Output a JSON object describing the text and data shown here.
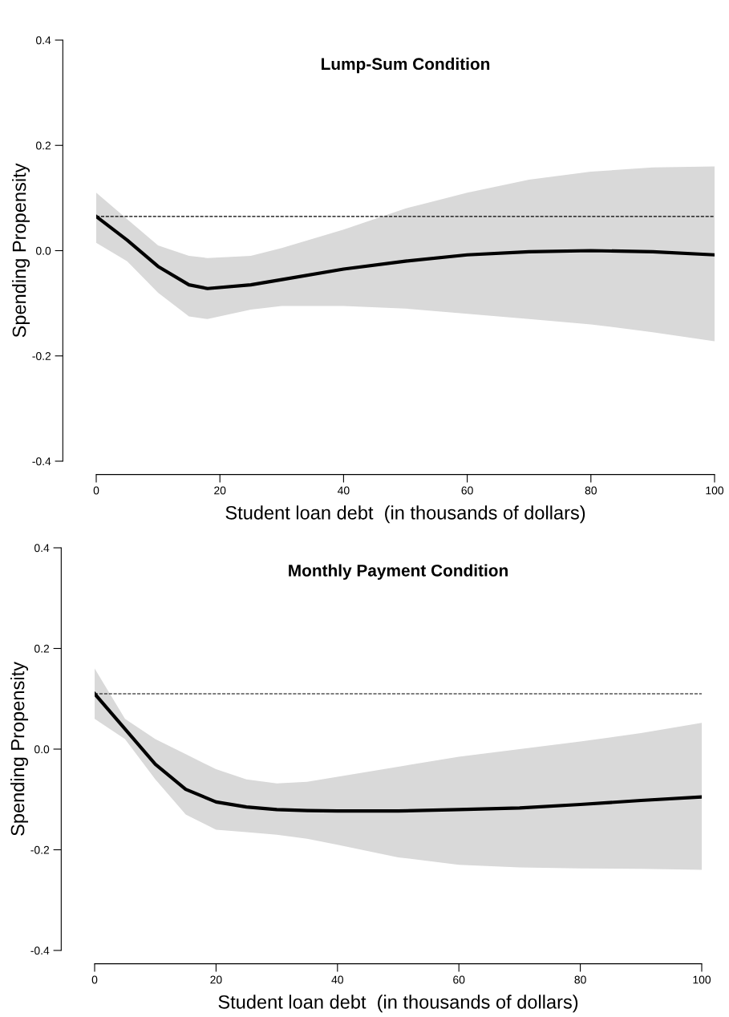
{
  "chart_data": [
    {
      "type": "line",
      "title": "Lump-Sum Condition",
      "xlabel": "Student loan debt  (in thousands of dollars)",
      "ylabel": "Spending Propensity",
      "xlim": [
        0,
        100
      ],
      "ylim": [
        -0.4,
        0.4
      ],
      "xticks": [
        0,
        20,
        40,
        60,
        80,
        100
      ],
      "yticks": [
        -0.4,
        -0.2,
        {
          "value": 0,
          "label": "0.0"
        },
        0.2,
        0.4
      ],
      "grid": false,
      "legend": false,
      "ref_lines": [
        {
          "axis": "y",
          "value": 0.065,
          "line_style": "dashed",
          "color": "#000000"
        }
      ],
      "series": [
        {
          "color": "#000000",
          "x": [
            0,
            5,
            10,
            15,
            18,
            25,
            30,
            40,
            50,
            60,
            70,
            80,
            90,
            100
          ],
          "values": [
            0.065,
            0.02,
            -0.03,
            -0.065,
            -0.072,
            -0.065,
            -0.055,
            -0.035,
            -0.02,
            -0.008,
            -0.002,
            0.0,
            -0.002,
            -0.008
          ],
          "lower": [
            0.015,
            -0.02,
            -0.08,
            -0.125,
            -0.13,
            -0.112,
            -0.105,
            -0.105,
            -0.11,
            -0.12,
            -0.13,
            -0.14,
            -0.155,
            -0.172
          ],
          "upper": [
            0.11,
            0.06,
            0.01,
            -0.01,
            -0.014,
            -0.01,
            0.005,
            0.04,
            0.08,
            0.11,
            0.135,
            0.15,
            0.158,
            0.16
          ]
        }
      ]
    },
    {
      "type": "line",
      "title": "Monthly Payment Condition",
      "xlabel": "Student loan debt  (in thousands of dollars)",
      "ylabel": "Spending Propensity",
      "xlim": [
        0,
        100
      ],
      "ylim": [
        -0.4,
        0.4
      ],
      "xticks": [
        0,
        20,
        40,
        60,
        80,
        100
      ],
      "yticks": [
        -0.4,
        -0.2,
        {
          "value": 0,
          "label": "0.0"
        },
        0.2,
        0.4
      ],
      "grid": false,
      "legend": false,
      "ref_lines": [
        {
          "axis": "y",
          "value": 0.11,
          "line_style": "dashed",
          "color": "#000000"
        }
      ],
      "series": [
        {
          "color": "#000000",
          "x": [
            0,
            5,
            10,
            15,
            20,
            25,
            30,
            35,
            40,
            50,
            60,
            70,
            80,
            90,
            100
          ],
          "values": [
            0.11,
            0.04,
            -0.03,
            -0.08,
            -0.105,
            -0.115,
            -0.12,
            -0.122,
            -0.123,
            -0.123,
            -0.12,
            -0.117,
            -0.11,
            -0.102,
            -0.095
          ],
          "lower": [
            0.06,
            0.02,
            -0.06,
            -0.13,
            -0.16,
            -0.165,
            -0.17,
            -0.178,
            -0.19,
            -0.215,
            -0.23,
            -0.235,
            -0.237,
            -0.238,
            -0.24
          ],
          "upper": [
            0.16,
            0.06,
            0.02,
            -0.01,
            -0.04,
            -0.06,
            -0.068,
            -0.065,
            -0.055,
            -0.035,
            -0.015,
            0.0,
            0.015,
            0.032,
            0.052
          ]
        }
      ]
    }
  ]
}
